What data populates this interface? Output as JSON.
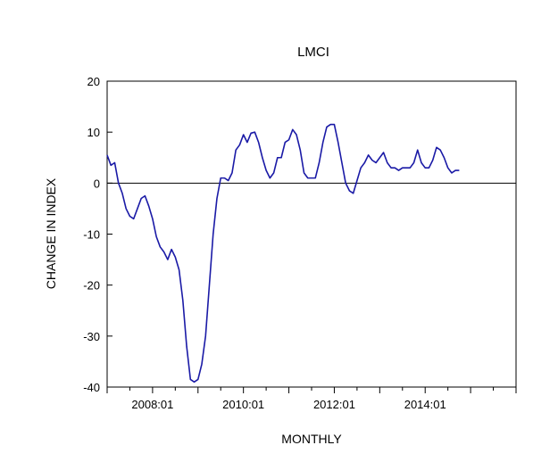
{
  "chart_data": {
    "type": "line",
    "title": "LMCI",
    "xlabel": "MONTHLY",
    "ylabel": "CHANGE IN INDEX",
    "ylim": [
      -40,
      20
    ],
    "yticks": [
      20,
      10,
      0,
      -10,
      -20,
      -30,
      -40
    ],
    "xlim": [
      "2007:01",
      "2015:12"
    ],
    "xtick_labels": [
      "2008:01",
      "2010:01",
      "2012:01",
      "2014:01"
    ],
    "zero_line": true,
    "grid": false,
    "colors": {
      "series": "#1a1aa6",
      "axis": "#000000"
    },
    "series": [
      {
        "x": [
          "2007:01",
          "2007:02",
          "2007:03",
          "2007:04",
          "2007:05",
          "2007:06",
          "2007:07",
          "2007:08",
          "2007:09",
          "2007:10",
          "2007:11",
          "2007:12",
          "2008:01",
          "2008:02",
          "2008:03",
          "2008:04",
          "2008:05",
          "2008:06",
          "2008:07",
          "2008:08",
          "2008:09",
          "2008:10",
          "2008:11",
          "2008:12",
          "2009:01",
          "2009:02",
          "2009:03",
          "2009:04",
          "2009:05",
          "2009:06",
          "2009:07",
          "2009:08",
          "2009:09",
          "2009:10",
          "2009:11",
          "2009:12",
          "2010:01",
          "2010:02",
          "2010:03",
          "2010:04",
          "2010:05",
          "2010:06",
          "2010:07",
          "2010:08",
          "2010:09",
          "2010:10",
          "2010:11",
          "2010:12",
          "2011:01",
          "2011:02",
          "2011:03",
          "2011:04",
          "2011:05",
          "2011:06",
          "2011:07",
          "2011:08",
          "2011:09",
          "2011:10",
          "2011:11",
          "2011:12",
          "2012:01",
          "2012:02",
          "2012:03",
          "2012:04",
          "2012:05",
          "2012:06",
          "2012:07",
          "2012:08",
          "2012:09",
          "2012:10",
          "2012:11",
          "2012:12",
          "2013:01",
          "2013:02",
          "2013:03",
          "2013:04",
          "2013:05",
          "2013:06",
          "2013:07",
          "2013:08",
          "2013:09",
          "2013:10",
          "2013:11",
          "2013:12",
          "2014:01",
          "2014:02",
          "2014:03",
          "2014:04",
          "2014:05",
          "2014:06",
          "2014:07",
          "2014:08",
          "2014:09",
          "2014:10"
        ],
        "values": [
          5.5,
          3.5,
          4,
          0,
          -2,
          -5,
          -6.5,
          -7,
          -5,
          -3,
          -2.5,
          -4.5,
          -7,
          -10.5,
          -12.5,
          -13.5,
          -15,
          -13,
          -14.5,
          -17,
          -23,
          -32,
          -38.5,
          -39,
          -38.5,
          -35.5,
          -30,
          -20,
          -10,
          -3,
          1,
          1,
          0.5,
          2,
          6.5,
          7.5,
          9.5,
          8,
          9.8,
          10,
          8,
          5,
          2.5,
          1,
          2,
          5,
          5,
          8,
          8.5,
          10.5,
          9.5,
          6.5,
          2,
          1,
          1,
          1,
          4,
          8,
          11,
          11.5,
          11.5,
          8,
          4,
          0,
          -1.5,
          -2,
          0.5,
          3,
          4,
          5.5,
          4.5,
          4,
          5,
          6,
          4,
          3,
          3,
          2.5,
          3,
          3,
          3,
          4,
          6.5,
          4,
          3,
          3,
          4.5,
          7,
          6.5,
          5,
          3,
          2,
          2.5,
          2.5
        ]
      }
    ]
  }
}
